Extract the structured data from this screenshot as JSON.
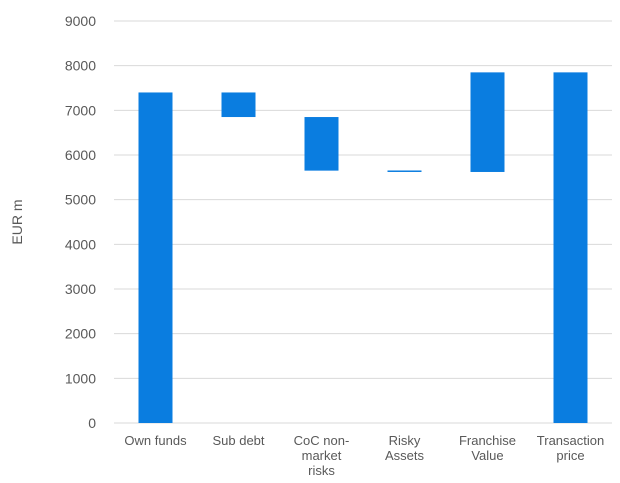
{
  "chart_data": {
    "type": "bar",
    "subtype": "waterfall",
    "title": "",
    "xlabel": "",
    "ylabel": "EUR m",
    "ylim": [
      0,
      9000
    ],
    "yticks": [
      0,
      1000,
      2000,
      3000,
      4000,
      5000,
      6000,
      7000,
      8000,
      9000
    ],
    "grid": true,
    "legend": "none",
    "bar_color": "#0A7DE0",
    "categories": [
      [
        "Own funds"
      ],
      [
        "Sub debt"
      ],
      [
        "CoC non-",
        "market",
        "risks"
      ],
      [
        "Risky",
        "Assets"
      ],
      [
        "Franchise",
        "Value"
      ],
      [
        "Transaction",
        "price"
      ]
    ],
    "bars": [
      {
        "base": 0,
        "top": 7400
      },
      {
        "base": 6850,
        "top": 7400
      },
      {
        "base": 5650,
        "top": 6850
      },
      {
        "base": 5620,
        "top": 5650
      },
      {
        "base": 5620,
        "top": 7850
      },
      {
        "base": 0,
        "top": 7850
      }
    ]
  }
}
